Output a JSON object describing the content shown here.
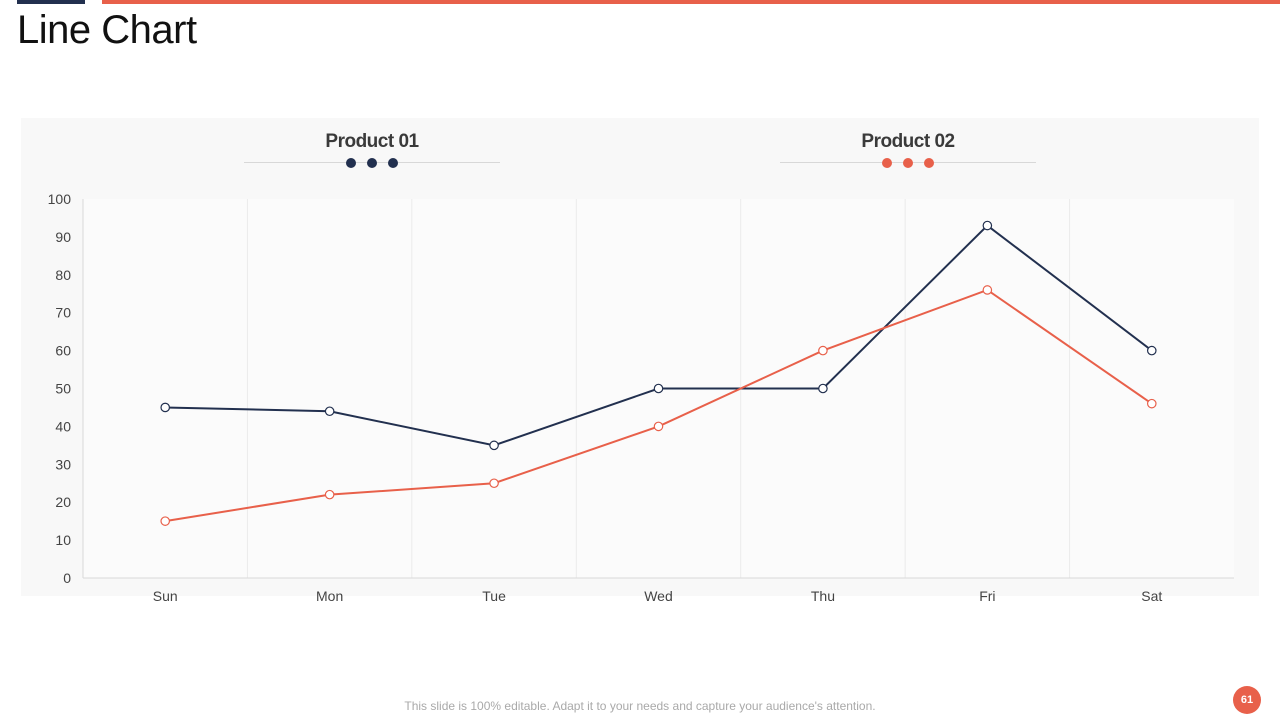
{
  "slide": {
    "title": "Line Chart",
    "footer": "This slide is 100% editable. Adapt it to your needs and capture your audience's attention.",
    "page_number": "61"
  },
  "colors": {
    "dark": "#22304f",
    "accent": "#e8604a"
  },
  "chart_data": {
    "type": "line",
    "title": "",
    "xlabel": "",
    "ylabel": "",
    "categories": [
      "Sun",
      "Mon",
      "Tue",
      "Wed",
      "Thu",
      "Fri",
      "Sat"
    ],
    "ylim": [
      0,
      100
    ],
    "yticks": [
      0,
      10,
      20,
      30,
      40,
      50,
      60,
      70,
      80,
      90,
      100
    ],
    "grid": "vertical",
    "legend_position": "top",
    "series": [
      {
        "name": "Product 01",
        "color": "#22304f",
        "values": [
          45,
          44,
          35,
          50,
          50,
          93,
          60
        ]
      },
      {
        "name": "Product 02",
        "color": "#e8604a",
        "values": [
          15,
          22,
          25,
          40,
          60,
          76,
          46
        ]
      }
    ]
  }
}
